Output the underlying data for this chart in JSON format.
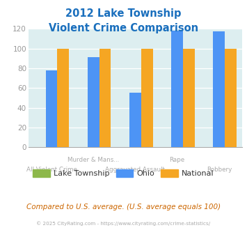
{
  "title_line1": "2012 Lake Township",
  "title_line2": "Violent Crime Comparison",
  "categories": [
    "All Violent Crime",
    "Murder & Mans...",
    "Aggravated Assault",
    "Rape",
    "Robbery"
  ],
  "lake_township": [
    0,
    0,
    0,
    0,
    0
  ],
  "ohio": [
    78,
    91,
    55,
    118,
    117
  ],
  "national": [
    100,
    100,
    100,
    100,
    100
  ],
  "colors": {
    "lake_township": "#8db84a",
    "ohio": "#4d94f5",
    "national": "#f5a623"
  },
  "ylim": [
    0,
    120
  ],
  "yticks": [
    0,
    20,
    40,
    60,
    80,
    100,
    120
  ],
  "plot_bg": "#ddeef0",
  "title_color": "#1a6fbd",
  "footer_text": "Compared to U.S. average. (U.S. average equals 100)",
  "copyright_text": "© 2025 CityRating.com - https://www.cityrating.com/crime-statistics/",
  "legend_labels": [
    "Lake Township",
    "Ohio",
    "National"
  ],
  "bar_width": 0.28,
  "xlabel_top": [
    "Murder & Mans...",
    "Rape"
  ],
  "xlabel_top_pos": [
    1,
    3
  ],
  "xlabel_bottom": [
    "All Violent Crime",
    "Aggravated Assault",
    "Robbery"
  ],
  "xlabel_bottom_pos": [
    0,
    2,
    4
  ]
}
